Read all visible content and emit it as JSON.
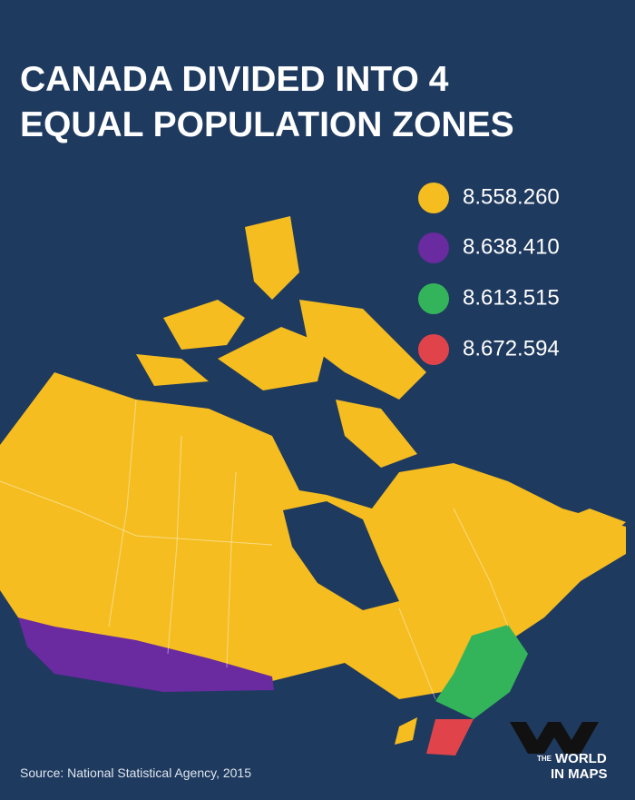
{
  "title": {
    "lines": [
      "CANADA DIVIDED INTO 4",
      "EQUAL POPULATION ZONES"
    ]
  },
  "legend": [
    {
      "label": "8.558.260",
      "color": "#f5bd1f"
    },
    {
      "label": "8.638.410",
      "color": "#6a2aa0"
    },
    {
      "label": "8.613.515",
      "color": "#34b45a"
    },
    {
      "label": "8.672.594",
      "color": "#e0444a"
    }
  ],
  "source": "Source: National Statistical Agency, 2015",
  "logo": {
    "small": "THE",
    "lines": [
      "WORLD",
      "IN MAPS"
    ]
  }
}
